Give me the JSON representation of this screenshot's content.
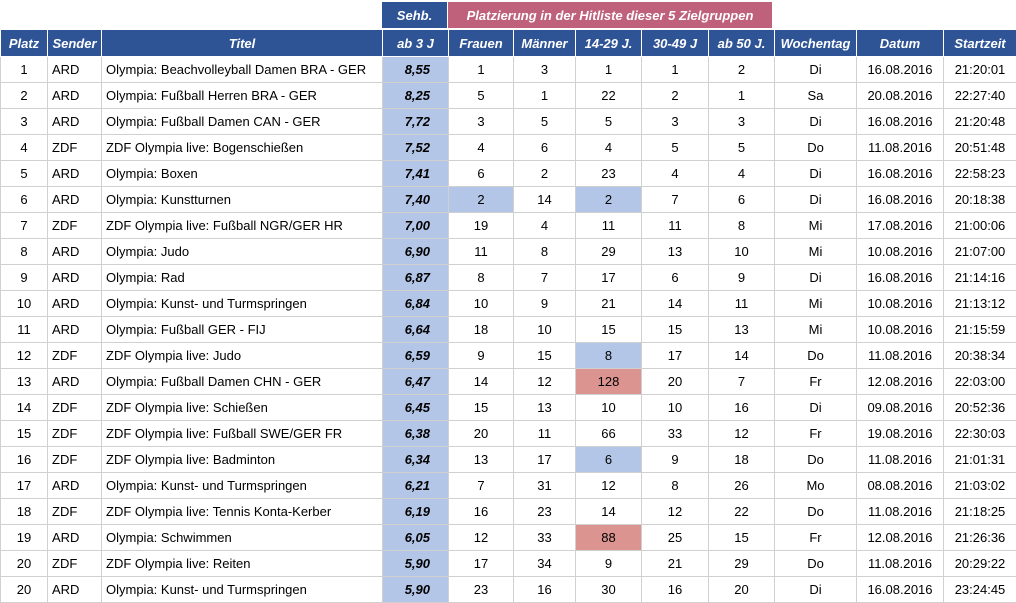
{
  "header": {
    "sehb_label": "Sehb.",
    "group_label": "Platzierung in der Hitliste dieser 5 Zielgruppen"
  },
  "columns": [
    "Platz",
    "Sender",
    "Titel",
    "ab 3 J",
    "Frauen",
    "Männer",
    "14-29 J.",
    "30-49 J",
    "ab 50 J.",
    "Wochentag",
    "Datum",
    "Startzeit"
  ],
  "highlight_colors": {
    "blue": "#b4c6e7",
    "red": "#dc9490",
    "header": "#2f5496",
    "group_header": "#c0617c"
  },
  "rows": [
    {
      "platz": "1",
      "sender": "ARD",
      "titel": "Olympia: Beachvolleyball Damen BRA - GER",
      "sehb": "8,55",
      "frauen": "1",
      "maenner": "3",
      "j14": "1",
      "j30": "1",
      "j50": "2",
      "tag": "Di",
      "datum": "16.08.2016",
      "zeit": "21:20:01",
      "hl": {}
    },
    {
      "platz": "2",
      "sender": "ARD",
      "titel": "Olympia: Fußball Herren BRA - GER",
      "sehb": "8,25",
      "frauen": "5",
      "maenner": "1",
      "j14": "22",
      "j30": "2",
      "j50": "1",
      "tag": "Sa",
      "datum": "20.08.2016",
      "zeit": "22:27:40",
      "hl": {}
    },
    {
      "platz": "3",
      "sender": "ARD",
      "titel": "Olympia: Fußball Damen CAN - GER",
      "sehb": "7,72",
      "frauen": "3",
      "maenner": "5",
      "j14": "5",
      "j30": "3",
      "j50": "3",
      "tag": "Di",
      "datum": "16.08.2016",
      "zeit": "21:20:48",
      "hl": {}
    },
    {
      "platz": "4",
      "sender": "ZDF",
      "titel": "ZDF Olympia live: Bogenschießen",
      "sehb": "7,52",
      "frauen": "4",
      "maenner": "6",
      "j14": "4",
      "j30": "5",
      "j50": "5",
      "tag": "Do",
      "datum": "11.08.2016",
      "zeit": "20:51:48",
      "hl": {}
    },
    {
      "platz": "5",
      "sender": "ARD",
      "titel": "Olympia: Boxen",
      "sehb": "7,41",
      "frauen": "6",
      "maenner": "2",
      "j14": "23",
      "j30": "4",
      "j50": "4",
      "tag": "Di",
      "datum": "16.08.2016",
      "zeit": "22:58:23",
      "hl": {}
    },
    {
      "platz": "6",
      "sender": "ARD",
      "titel": "Olympia: Kunstturnen",
      "sehb": "7,40",
      "frauen": "2",
      "maenner": "14",
      "j14": "2",
      "j30": "7",
      "j50": "6",
      "tag": "Di",
      "datum": "16.08.2016",
      "zeit": "20:18:38",
      "hl": {
        "frauen": "blue",
        "j14": "blue"
      }
    },
    {
      "platz": "7",
      "sender": "ZDF",
      "titel": "ZDF Olympia live: Fußball NGR/GER HR",
      "sehb": "7,00",
      "frauen": "19",
      "maenner": "4",
      "j14": "11",
      "j30": "11",
      "j50": "8",
      "tag": "Mi",
      "datum": "17.08.2016",
      "zeit": "21:00:06",
      "hl": {}
    },
    {
      "platz": "8",
      "sender": "ARD",
      "titel": "Olympia: Judo",
      "sehb": "6,90",
      "frauen": "11",
      "maenner": "8",
      "j14": "29",
      "j30": "13",
      "j50": "10",
      "tag": "Mi",
      "datum": "10.08.2016",
      "zeit": "21:07:00",
      "hl": {}
    },
    {
      "platz": "9",
      "sender": "ARD",
      "titel": "Olympia: Rad",
      "sehb": "6,87",
      "frauen": "8",
      "maenner": "7",
      "j14": "17",
      "j30": "6",
      "j50": "9",
      "tag": "Di",
      "datum": "16.08.2016",
      "zeit": "21:14:16",
      "hl": {}
    },
    {
      "platz": "10",
      "sender": "ARD",
      "titel": "Olympia: Kunst- und Turmspringen",
      "sehb": "6,84",
      "frauen": "10",
      "maenner": "9",
      "j14": "21",
      "j30": "14",
      "j50": "11",
      "tag": "Mi",
      "datum": "10.08.2016",
      "zeit": "21:13:12",
      "hl": {}
    },
    {
      "platz": "11",
      "sender": "ARD",
      "titel": "Olympia: Fußball GER - FIJ",
      "sehb": "6,64",
      "frauen": "18",
      "maenner": "10",
      "j14": "15",
      "j30": "15",
      "j50": "13",
      "tag": "Mi",
      "datum": "10.08.2016",
      "zeit": "21:15:59",
      "hl": {}
    },
    {
      "platz": "12",
      "sender": "ZDF",
      "titel": "ZDF Olympia live: Judo",
      "sehb": "6,59",
      "frauen": "9",
      "maenner": "15",
      "j14": "8",
      "j30": "17",
      "j50": "14",
      "tag": "Do",
      "datum": "11.08.2016",
      "zeit": "20:38:34",
      "hl": {
        "j14": "blue"
      }
    },
    {
      "platz": "13",
      "sender": "ARD",
      "titel": "Olympia: Fußball Damen CHN - GER",
      "sehb": "6,47",
      "frauen": "14",
      "maenner": "12",
      "j14": "128",
      "j30": "20",
      "j50": "7",
      "tag": "Fr",
      "datum": "12.08.2016",
      "zeit": "22:03:00",
      "hl": {
        "j14": "red"
      }
    },
    {
      "platz": "14",
      "sender": "ZDF",
      "titel": "ZDF Olympia live: Schießen",
      "sehb": "6,45",
      "frauen": "15",
      "maenner": "13",
      "j14": "10",
      "j30": "10",
      "j50": "16",
      "tag": "Di",
      "datum": "09.08.2016",
      "zeit": "20:52:36",
      "hl": {}
    },
    {
      "platz": "15",
      "sender": "ZDF",
      "titel": "ZDF Olympia live: Fußball SWE/GER FR",
      "sehb": "6,38",
      "frauen": "20",
      "maenner": "11",
      "j14": "66",
      "j30": "33",
      "j50": "12",
      "tag": "Fr",
      "datum": "19.08.2016",
      "zeit": "22:30:03",
      "hl": {}
    },
    {
      "platz": "16",
      "sender": "ZDF",
      "titel": "ZDF Olympia live: Badminton",
      "sehb": "6,34",
      "frauen": "13",
      "maenner": "17",
      "j14": "6",
      "j30": "9",
      "j50": "18",
      "tag": "Do",
      "datum": "11.08.2016",
      "zeit": "21:01:31",
      "hl": {
        "j14": "blue"
      }
    },
    {
      "platz": "17",
      "sender": "ARD",
      "titel": "Olympia: Kunst- und Turmspringen",
      "sehb": "6,21",
      "frauen": "7",
      "maenner": "31",
      "j14": "12",
      "j30": "8",
      "j50": "26",
      "tag": "Mo",
      "datum": "08.08.2016",
      "zeit": "21:03:02",
      "hl": {}
    },
    {
      "platz": "18",
      "sender": "ZDF",
      "titel": "ZDF Olympia live: Tennis Konta-Kerber",
      "sehb": "6,19",
      "frauen": "16",
      "maenner": "23",
      "j14": "14",
      "j30": "12",
      "j50": "22",
      "tag": "Do",
      "datum": "11.08.2016",
      "zeit": "21:18:25",
      "hl": {}
    },
    {
      "platz": "19",
      "sender": "ARD",
      "titel": "Olympia: Schwimmen",
      "sehb": "6,05",
      "frauen": "12",
      "maenner": "33",
      "j14": "88",
      "j30": "25",
      "j50": "15",
      "tag": "Fr",
      "datum": "12.08.2016",
      "zeit": "21:26:36",
      "hl": {
        "j14": "red"
      }
    },
    {
      "platz": "20",
      "sender": "ZDF",
      "titel": "ZDF Olympia live: Reiten",
      "sehb": "5,90",
      "frauen": "17",
      "maenner": "34",
      "j14": "9",
      "j30": "21",
      "j50": "29",
      "tag": "Do",
      "datum": "11.08.2016",
      "zeit": "20:29:22",
      "hl": {}
    },
    {
      "platz": "20",
      "sender": "ARD",
      "titel": "Olympia: Kunst- und Turmspringen",
      "sehb": "5,90",
      "frauen": "23",
      "maenner": "16",
      "j14": "30",
      "j30": "16",
      "j50": "20",
      "tag": "Di",
      "datum": "16.08.2016",
      "zeit": "23:24:45",
      "hl": {}
    }
  ]
}
